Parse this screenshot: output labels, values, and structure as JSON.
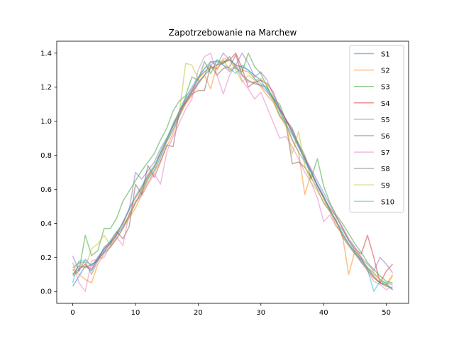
{
  "chart_data": {
    "type": "line",
    "title": "Zapotrzebowanie na Marchew",
    "xlabel": "",
    "ylabel": "",
    "xlim": [
      -2.55,
      53.55
    ],
    "ylim": [
      -0.07,
      1.47
    ],
    "xticks": [
      0,
      10,
      20,
      30,
      40,
      50
    ],
    "yticks": [
      0.0,
      0.2,
      0.4,
      0.6,
      0.8,
      1.0,
      1.2,
      1.4
    ],
    "grid": false,
    "legend_position": "top-right",
    "series": [
      {
        "name": "S1",
        "color": "#1f77b4",
        "values": [
          0.03,
          0.09,
          0.15,
          0.12,
          0.19,
          0.23,
          0.29,
          0.33,
          0.38,
          0.44,
          0.52,
          0.58,
          0.66,
          0.71,
          0.79,
          0.88,
          0.95,
          1.03,
          1.11,
          1.17,
          1.23,
          1.27,
          1.31,
          1.33,
          1.34,
          1.36,
          1.33,
          1.32,
          1.3,
          1.27,
          1.24,
          1.18,
          1.13,
          1.07,
          1.01,
          0.94,
          0.86,
          0.78,
          0.7,
          0.63,
          0.56,
          0.48,
          0.41,
          0.34,
          0.28,
          0.23,
          0.17,
          0.13,
          0.08,
          0.05,
          0.03,
          0.02
        ]
      },
      {
        "name": "S2",
        "color": "#ff7f0e",
        "values": [
          0.13,
          0.1,
          0.07,
          0.05,
          0.16,
          0.22,
          0.26,
          0.31,
          0.37,
          0.43,
          0.49,
          0.57,
          0.64,
          0.7,
          0.77,
          0.85,
          0.93,
          1.03,
          1.1,
          1.15,
          1.22,
          1.27,
          1.19,
          1.33,
          1.36,
          1.3,
          1.33,
          1.3,
          1.29,
          1.25,
          1.2,
          1.15,
          1.11,
          1.03,
          0.97,
          0.89,
          0.82,
          0.57,
          0.69,
          0.62,
          0.55,
          0.47,
          0.39,
          0.33,
          0.1,
          0.24,
          0.2,
          0.12,
          0.08,
          0.05,
          0.04,
          0.1
        ]
      },
      {
        "name": "S3",
        "color": "#2ca02c",
        "values": [
          0.09,
          0.12,
          0.33,
          0.21,
          0.24,
          0.37,
          0.37,
          0.43,
          0.53,
          0.59,
          0.65,
          0.71,
          0.76,
          0.81,
          0.89,
          0.96,
          1.06,
          1.12,
          1.15,
          1.26,
          1.24,
          1.35,
          1.28,
          1.36,
          1.34,
          1.38,
          1.31,
          1.29,
          1.4,
          1.32,
          1.28,
          1.2,
          1.13,
          1.1,
          1.0,
          0.95,
          0.87,
          0.8,
          0.66,
          0.78,
          0.62,
          0.52,
          0.45,
          0.4,
          0.34,
          0.28,
          0.23,
          0.17,
          0.13,
          0.09,
          0.06,
          0.05
        ]
      },
      {
        "name": "S4",
        "color": "#d62728",
        "values": [
          0.1,
          0.13,
          0.16,
          0.13,
          0.2,
          0.25,
          0.28,
          0.34,
          0.4,
          0.48,
          0.55,
          0.61,
          0.68,
          0.73,
          0.81,
          0.89,
          0.97,
          1.05,
          1.12,
          1.18,
          1.25,
          1.29,
          1.32,
          1.31,
          1.35,
          1.36,
          1.4,
          1.31,
          1.2,
          1.23,
          1.24,
          1.22,
          1.17,
          1.07,
          1.01,
          0.93,
          0.85,
          0.78,
          0.71,
          0.62,
          0.55,
          0.49,
          0.44,
          0.37,
          0.3,
          0.25,
          0.22,
          0.33,
          0.2,
          0.05,
          0.12,
          0.16
        ]
      },
      {
        "name": "S5",
        "color": "#9467bd",
        "values": [
          0.21,
          0.12,
          0.19,
          0.15,
          0.19,
          0.24,
          0.28,
          0.33,
          0.41,
          0.48,
          0.7,
          0.66,
          0.71,
          0.76,
          0.84,
          0.9,
          0.98,
          1.06,
          1.14,
          1.19,
          1.25,
          1.31,
          1.35,
          1.33,
          1.4,
          1.36,
          1.33,
          1.4,
          1.34,
          1.26,
          1.29,
          1.24,
          1.15,
          1.08,
          1.01,
          0.96,
          0.86,
          0.79,
          0.72,
          0.65,
          0.58,
          0.51,
          0.44,
          0.38,
          0.31,
          0.26,
          0.2,
          0.16,
          0.12,
          0.2,
          0.16,
          0.11
        ]
      },
      {
        "name": "S6",
        "color": "#8c564b",
        "values": [
          0.1,
          0.15,
          0.14,
          0.16,
          0.18,
          0.26,
          0.29,
          0.35,
          0.31,
          0.38,
          0.63,
          0.57,
          0.74,
          0.67,
          0.76,
          0.86,
          0.85,
          1.06,
          1.11,
          1.16,
          1.18,
          1.18,
          1.33,
          1.27,
          1.31,
          1.32,
          1.39,
          1.27,
          1.24,
          1.22,
          1.21,
          1.2,
          1.13,
          1.06,
          0.99,
          0.75,
          0.76,
          0.73,
          0.67,
          0.6,
          0.52,
          0.47,
          0.42,
          0.32,
          0.27,
          0.22,
          0.19,
          0.14,
          0.09,
          0.05,
          0.04,
          0.01
        ]
      },
      {
        "name": "S7",
        "color": "#e377c2",
        "values": [
          0.17,
          0.05,
          0.0,
          0.18,
          0.19,
          0.2,
          0.27,
          0.32,
          0.27,
          0.46,
          0.53,
          0.56,
          0.63,
          0.69,
          0.63,
          0.82,
          0.91,
          0.99,
          1.07,
          1.13,
          1.3,
          1.38,
          1.4,
          1.27,
          1.16,
          1.27,
          1.33,
          1.24,
          1.19,
          1.13,
          1.17,
          1.08,
          0.99,
          0.9,
          0.91,
          0.85,
          0.78,
          0.7,
          0.64,
          0.55,
          0.41,
          0.45,
          0.38,
          0.34,
          0.27,
          0.22,
          0.17,
          0.12,
          0.06,
          0.04,
          0.01,
          0.03
        ]
      },
      {
        "name": "S8",
        "color": "#7f7f7f",
        "values": [
          0.14,
          0.17,
          0.17,
          0.1,
          0.18,
          0.23,
          0.26,
          0.31,
          0.37,
          0.45,
          0.52,
          0.6,
          0.67,
          0.73,
          0.81,
          0.89,
          0.97,
          1.04,
          1.13,
          1.17,
          1.22,
          1.27,
          1.35,
          1.35,
          1.33,
          1.29,
          1.32,
          1.27,
          1.23,
          1.23,
          1.21,
          1.17,
          1.12,
          1.03,
          0.99,
          0.89,
          0.82,
          0.76,
          0.7,
          0.62,
          0.55,
          0.48,
          0.41,
          0.36,
          0.3,
          0.24,
          0.19,
          0.14,
          0.11,
          0.07,
          0.05,
          0.04
        ]
      },
      {
        "name": "S9",
        "color": "#bcbd22",
        "values": [
          0.12,
          0.17,
          0.14,
          0.25,
          0.28,
          0.33,
          0.27,
          0.35,
          0.39,
          0.45,
          0.52,
          0.59,
          0.66,
          0.73,
          0.82,
          0.88,
          0.99,
          1.05,
          1.34,
          1.33,
          1.25,
          1.29,
          1.32,
          1.3,
          1.37,
          1.36,
          1.3,
          1.23,
          1.27,
          1.24,
          1.25,
          1.21,
          1.12,
          1.04,
          0.98,
          0.81,
          0.94,
          0.74,
          0.64,
          0.59,
          0.53,
          0.47,
          0.41,
          0.33,
          0.27,
          0.22,
          0.18,
          0.14,
          0.1,
          0.07,
          0.03,
          0.09
        ]
      },
      {
        "name": "S10",
        "color": "#17becf",
        "values": [
          0.05,
          0.18,
          0.18,
          0.15,
          0.2,
          0.25,
          0.3,
          0.35,
          0.4,
          0.49,
          0.56,
          0.62,
          0.69,
          0.74,
          0.82,
          0.9,
          0.98,
          1.06,
          1.14,
          1.2,
          1.26,
          1.31,
          1.33,
          1.36,
          1.33,
          1.31,
          1.28,
          1.33,
          1.3,
          1.25,
          1.22,
          1.19,
          1.14,
          1.06,
          0.98,
          0.92,
          0.85,
          0.77,
          0.7,
          0.62,
          0.56,
          0.48,
          0.41,
          0.34,
          0.28,
          0.23,
          0.18,
          0.13,
          0.0,
          0.06,
          0.05,
          0.01
        ]
      }
    ]
  }
}
